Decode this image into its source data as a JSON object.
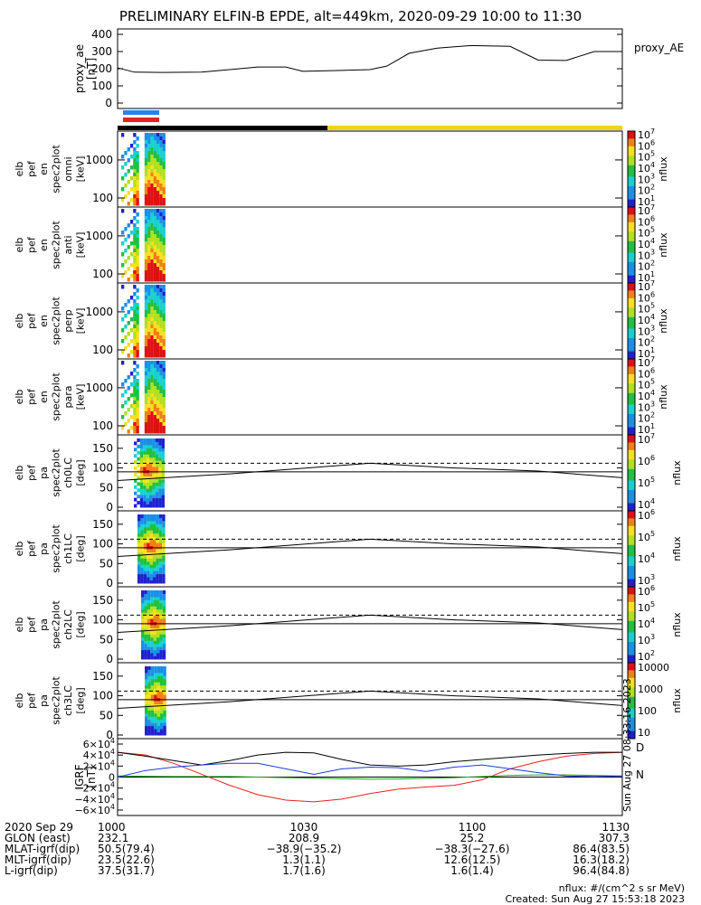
{
  "title": "PRELIMINARY ELFIN-B EPDE, alt=449km, 2020-09-29 10:00 to 11:30",
  "colors": {
    "blue_bar": "#2f7fe8",
    "red_bar": "#e8201c",
    "black_bar": "#000000",
    "yellow_bar": "#f2d21a",
    "bx": "#e8201c",
    "by": "#1a3cd8",
    "bz": "#1ca81c"
  },
  "chart_data": [
    {
      "type": "line",
      "name": "proxy_ae",
      "ylabel_lines": [
        "proxy_ae",
        "[nT]"
      ],
      "legend": "proxy_AE",
      "ylim": [
        0,
        400
      ],
      "yticks": [
        "400",
        "300",
        "200",
        "100",
        "0"
      ],
      "x_minutes": [
        0,
        3,
        8,
        15,
        25,
        30,
        33,
        40,
        45,
        48,
        52,
        57,
        63,
        70,
        75,
        80,
        85,
        90
      ],
      "values": [
        205,
        180,
        178,
        180,
        210,
        210,
        185,
        190,
        195,
        215,
        290,
        320,
        335,
        330,
        250,
        248,
        300,
        300
      ]
    },
    {
      "type": "heatmap",
      "name": "spec_omni",
      "ylabel_lines": [
        "elb",
        "pef",
        "en",
        "spec2plot",
        "omni",
        "[keV]"
      ],
      "yticks": [
        "1000",
        "100"
      ],
      "colorbar": {
        "label": "nflux",
        "ticks": [
          "10^7",
          "10^6",
          "10^5",
          "10^4",
          "10^3",
          "10^2",
          "10^1"
        ]
      }
    },
    {
      "type": "heatmap",
      "name": "spec_anti",
      "ylabel_lines": [
        "elb",
        "pef",
        "en",
        "spec2plot",
        "anti",
        "[keV]"
      ],
      "yticks": [
        "1000",
        "100"
      ],
      "colorbar": {
        "label": "nflux",
        "ticks": [
          "10^7",
          "10^6",
          "10^5",
          "10^4",
          "10^3",
          "10^2",
          "10^1"
        ]
      }
    },
    {
      "type": "heatmap",
      "name": "spec_perp",
      "ylabel_lines": [
        "elb",
        "pef",
        "en",
        "spec2plot",
        "perp",
        "[keV]"
      ],
      "yticks": [
        "1000",
        "100"
      ],
      "colorbar": {
        "label": "nflux",
        "ticks": [
          "10^7",
          "10^6",
          "10^5",
          "10^4",
          "10^3",
          "10^2",
          "10^1"
        ]
      }
    },
    {
      "type": "heatmap",
      "name": "spec_para",
      "ylabel_lines": [
        "elb",
        "pef",
        "en",
        "spec2plot",
        "para",
        "[keV]"
      ],
      "yticks": [
        "1000",
        "100"
      ],
      "colorbar": {
        "label": "nflux",
        "ticks": [
          "10^7",
          "10^6",
          "10^5",
          "10^4",
          "10^3",
          "10^2",
          "10^1"
        ]
      }
    },
    {
      "type": "heatmap",
      "name": "pa_ch0",
      "ylabel_lines": [
        "elb",
        "pef",
        "pa",
        "spec2plot",
        "ch0LC",
        "[deg]"
      ],
      "yticks": [
        "150",
        "100",
        "50",
        "0"
      ],
      "colorbar": {
        "label": "nflux",
        "ticks": [
          "10^7",
          "10^6",
          "10^5",
          "10^4"
        ]
      }
    },
    {
      "type": "heatmap",
      "name": "pa_ch1",
      "ylabel_lines": [
        "elb",
        "pef",
        "pa",
        "spec2plot",
        "ch1LC",
        "[deg]"
      ],
      "yticks": [
        "150",
        "100",
        "50",
        "0"
      ],
      "colorbar": {
        "label": "nflux",
        "ticks": [
          "10^6",
          "10^5",
          "10^4",
          "10^3"
        ]
      }
    },
    {
      "type": "heatmap",
      "name": "pa_ch2",
      "ylabel_lines": [
        "elb",
        "pef",
        "pa",
        "spec2plot",
        "ch2LC",
        "[deg]"
      ],
      "yticks": [
        "150",
        "100",
        "50",
        "0"
      ],
      "colorbar": {
        "label": "nflux",
        "ticks": [
          "10^6",
          "10^5",
          "10^4",
          "10^3",
          "10^2"
        ]
      }
    },
    {
      "type": "heatmap",
      "name": "pa_ch3",
      "ylabel_lines": [
        "elb",
        "pef",
        "pa",
        "spec2plot",
        "ch3LC",
        "[deg]"
      ],
      "yticks": [
        "150",
        "100",
        "50",
        "0"
      ],
      "colorbar": {
        "label": "nflux",
        "ticks": [
          "10000",
          "1000",
          "100",
          "10"
        ]
      }
    },
    {
      "type": "line",
      "name": "igrf",
      "ylabel_lines": [
        "IGRF",
        "[nT]"
      ],
      "ylim": [
        -60000,
        60000
      ],
      "yticks": [
        "6×10^4",
        "4×10^4",
        "2×10^4",
        "0",
        "−2×10^4",
        "−4×10^4",
        "−6×10^4"
      ],
      "x_minutes": [
        0,
        5,
        10,
        15,
        20,
        25,
        30,
        35,
        40,
        45,
        50,
        55,
        60,
        65,
        70,
        75,
        80,
        85,
        90
      ],
      "series": [
        {
          "name": "D",
          "color": "#e8201c",
          "values": [
            45000,
            40000,
            25000,
            5000,
            -15000,
            -32000,
            -42000,
            -45000,
            -40000,
            -30000,
            -22000,
            -18000,
            -15000,
            -5000,
            15000,
            28000,
            38000,
            43000,
            45000
          ]
        },
        {
          "name": "",
          "color": "#000000",
          "values": [
            45000,
            38000,
            30000,
            22000,
            30000,
            40000,
            45000,
            44000,
            32000,
            22000,
            20000,
            22000,
            28000,
            32000,
            36000,
            40000,
            43000,
            45000,
            45000
          ]
        },
        {
          "name": "N",
          "color": "#1ca81c",
          "values": [
            2000,
            1500,
            1000,
            1000,
            1000,
            0,
            -1000,
            -2000,
            -3000,
            -4000,
            -3500,
            -2500,
            -1000,
            1000,
            3000,
            4000,
            4000,
            3000,
            2000
          ]
        },
        {
          "name": "",
          "color": "#1a3cd8",
          "values": [
            0,
            12000,
            18000,
            22000,
            25000,
            25000,
            15000,
            5000,
            15000,
            18000,
            17000,
            10000,
            18000,
            22000,
            15000,
            8000,
            2000,
            1000,
            2000
          ]
        }
      ],
      "side_labels": [
        "D",
        "N"
      ],
      "stamp": "Sun Aug 27 08:33:16 2023"
    }
  ],
  "axis": {
    "xticks": [
      "1000",
      "1030",
      "1100",
      "1130"
    ],
    "rows": [
      {
        "label": "2020 Sep 29",
        "values": [
          "1000",
          "1030",
          "1100",
          "1130"
        ]
      },
      {
        "label": "GLON (east)",
        "values": [
          "232.1",
          "208.9",
          "25.2",
          "307.3"
        ]
      },
      {
        "label": "MLAT-igrf(dip)",
        "values": [
          "50.5(79.4)",
          "−38.9(−35.2)",
          "−38.3(−27.6)",
          "86.4(83.5)"
        ]
      },
      {
        "label": "MLT-igrf(dip)",
        "values": [
          "23.5(22.6)",
          "1.3(1.1)",
          "12.6(12.5)",
          "16.3(18.2)"
        ]
      },
      {
        "label": "L-igrf(dip)",
        "values": [
          "37.5(31.7)",
          "1.7(1.6)",
          "1.6(1.4)",
          "96.4(84.8)"
        ]
      }
    ]
  },
  "footer": {
    "units": "nflux: #/(cm^2 s sr MeV)",
    "created": "Created: Sun Aug 27 15:53:18 2023"
  }
}
